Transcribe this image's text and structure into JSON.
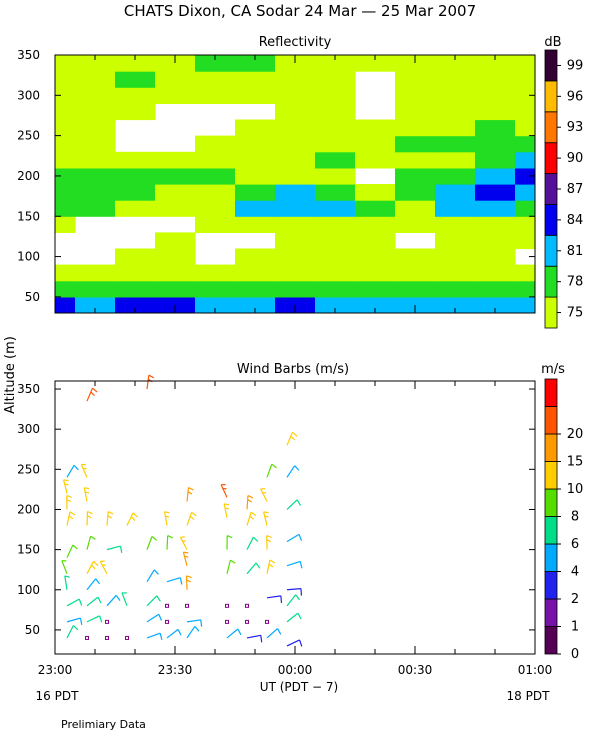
{
  "title": "CHATS Dixon, CA  Sodar  24 Mar — 25 Mar 2007",
  "y_axis_label": "Altitude (m)",
  "x_axis_label": "UT  (PDT − 7)",
  "footer_note": "Prelimiary Data",
  "date_left": "16 PDT",
  "date_right": "18 PDT",
  "x_ticks": [
    "23:00",
    "23:30",
    "00:00",
    "00:30",
    "01:00"
  ],
  "panels": {
    "reflectivity": {
      "title": "Reflectivity",
      "unit": "dB",
      "y_ticks": [
        "350",
        "300",
        "250",
        "200",
        "150",
        "100",
        "50"
      ],
      "colorbar": [
        {
          "label": "75",
          "color": "#ccff00"
        },
        {
          "label": "78",
          "color": "#22dd22"
        },
        {
          "label": "81",
          "color": "#00bbff"
        },
        {
          "label": "84",
          "color": "#0000ee"
        },
        {
          "label": "87",
          "color": "#551199"
        },
        {
          "label": "90",
          "color": "#ff0000"
        },
        {
          "label": "93",
          "color": "#ff7700"
        },
        {
          "label": "96",
          "color": "#ffbb00"
        },
        {
          "label": "99",
          "color": "#330033"
        }
      ]
    },
    "wind": {
      "title": "Wind Barbs (m/s)",
      "unit": "m/s",
      "y_ticks": [
        "350",
        "300",
        "250",
        "200",
        "150",
        "100",
        "50"
      ],
      "colorbar": [
        {
          "label": "0",
          "color": "#550055"
        },
        {
          "label": "1",
          "color": "#7711aa"
        },
        {
          "label": "2",
          "color": "#2222ee"
        },
        {
          "label": "4",
          "color": "#00aaff"
        },
        {
          "label": "6",
          "color": "#00dd88"
        },
        {
          "label": "8",
          "color": "#55dd00"
        },
        {
          "label": "10",
          "color": "#ffcc00"
        },
        {
          "label": "15",
          "color": "#ff9900"
        },
        {
          "label": "20",
          "color": "#ff5500"
        },
        {
          "label": "",
          "color": "#ff0000"
        }
      ]
    }
  },
  "chart_data": [
    {
      "type": "heatmap",
      "title": "Reflectivity",
      "units": "dB",
      "xlabel": "UT  (PDT − 7)",
      "ylabel": "Altitude (m)",
      "x_range": [
        "23:00",
        "01:00"
      ],
      "ylim": [
        30,
        350
      ],
      "levels": [
        75,
        78,
        81,
        84,
        87,
        90,
        93,
        96,
        99
      ],
      "x": [
        0,
        10,
        20,
        30,
        40,
        50,
        60,
        70,
        80,
        90,
        100,
        110,
        120
      ],
      "y": [
        40,
        60,
        80,
        100,
        120,
        140,
        160,
        180,
        200,
        220,
        240,
        260,
        280,
        300,
        320,
        340
      ],
      "z": [
        [
          84,
          81,
          84,
          84,
          81,
          81,
          84,
          81,
          81,
          81,
          81,
          81,
          81
        ],
        [
          80,
          79,
          79,
          79,
          79,
          79,
          80,
          79,
          79,
          79,
          79,
          79,
          79
        ],
        [
          77,
          76,
          76,
          76,
          76,
          76,
          77,
          77,
          77,
          77,
          77,
          77,
          76
        ],
        [
          74,
          74,
          75,
          76,
          74,
          75,
          76,
          76,
          76,
          75,
          76,
          76,
          74
        ],
        [
          74,
          72,
          74,
          75,
          72,
          74,
          75,
          76,
          75,
          74,
          75,
          75,
          76
        ],
        [
          76,
          74,
          73,
          74,
          76,
          77,
          77,
          76,
          76,
          75,
          77,
          77,
          76
        ],
        [
          78,
          78,
          77,
          76,
          77,
          81,
          82,
          82,
          79,
          77,
          82,
          82,
          79
        ],
        [
          78,
          79,
          79,
          77,
          76,
          79,
          82,
          78,
          75,
          79,
          83,
          85,
          83
        ],
        [
          79,
          79,
          79,
          78,
          78,
          77,
          77,
          76,
          73,
          78,
          79,
          83,
          85
        ],
        [
          77,
          77,
          76,
          76,
          77,
          77,
          77,
          79,
          76,
          77,
          77,
          79,
          82
        ],
        [
          76,
          75,
          74,
          74,
          75,
          75,
          76,
          77,
          77,
          78,
          78,
          78,
          78
        ],
        [
          76,
          75,
          74,
          73,
          74,
          75,
          76,
          76,
          75,
          75,
          77,
          78,
          76
        ],
        [
          76,
          76,
          76,
          74,
          73,
          74,
          76,
          75,
          74,
          75,
          76,
          76,
          76
        ],
        [
          76,
          75,
          76,
          76,
          75,
          75,
          76,
          75,
          74,
          75,
          75,
          76,
          76
        ],
        [
          76,
          76,
          78,
          76,
          76,
          76,
          77,
          76,
          74,
          75,
          76,
          76,
          75
        ],
        [
          76,
          76,
          76,
          76,
          79,
          78,
          77,
          76,
          75,
          76,
          76,
          76,
          76
        ]
      ]
    },
    {
      "type": "scatter",
      "subtype": "wind_barbs",
      "title": "Wind Barbs (m/s)",
      "units": "m/s",
      "xlabel": "UT  (PDT − 7)",
      "ylabel": "Altitude (m)",
      "x_range": [
        "23:00",
        "01:00"
      ],
      "ylim": [
        20,
        360
      ],
      "speed_levels": [
        0,
        1,
        2,
        4,
        6,
        8,
        10,
        15,
        20
      ],
      "barbs": [
        {
          "t": 3,
          "alt": 40,
          "speed": 6
        },
        {
          "t": 3,
          "alt": 60,
          "speed": 5
        },
        {
          "t": 3,
          "alt": 80,
          "speed": 6
        },
        {
          "t": 3,
          "alt": 100,
          "speed": 7
        },
        {
          "t": 3,
          "alt": 120,
          "speed": 9
        },
        {
          "t": 3,
          "alt": 140,
          "speed": 9
        },
        {
          "t": 3,
          "alt": 180,
          "speed": 10
        },
        {
          "t": 3,
          "alt": 200,
          "speed": 10
        },
        {
          "t": 3,
          "alt": 220,
          "speed": 10
        },
        {
          "t": 3,
          "alt": 240,
          "speed": 5
        },
        {
          "t": 8,
          "alt": 40,
          "speed": 0
        },
        {
          "t": 8,
          "alt": 60,
          "speed": 6
        },
        {
          "t": 8,
          "alt": 80,
          "speed": 6
        },
        {
          "t": 8,
          "alt": 100,
          "speed": 5
        },
        {
          "t": 8,
          "alt": 120,
          "speed": 10
        },
        {
          "t": 8,
          "alt": 150,
          "speed": 9
        },
        {
          "t": 8,
          "alt": 180,
          "speed": 10
        },
        {
          "t": 8,
          "alt": 210,
          "speed": 10
        },
        {
          "t": 8,
          "alt": 240,
          "speed": 10
        },
        {
          "t": 8,
          "alt": 335,
          "speed": 20
        },
        {
          "t": 13,
          "alt": 40,
          "speed": 0
        },
        {
          "t": 13,
          "alt": 60,
          "speed": 0
        },
        {
          "t": 13,
          "alt": 80,
          "speed": 5
        },
        {
          "t": 13,
          "alt": 120,
          "speed": 10
        },
        {
          "t": 13,
          "alt": 150,
          "speed": 6
        },
        {
          "t": 13,
          "alt": 180,
          "speed": 10
        },
        {
          "t": 18,
          "alt": 40,
          "speed": 0
        },
        {
          "t": 18,
          "alt": 80,
          "speed": 7
        },
        {
          "t": 18,
          "alt": 180,
          "speed": 10
        },
        {
          "t": 23,
          "alt": 40,
          "speed": 5
        },
        {
          "t": 23,
          "alt": 60,
          "speed": 5
        },
        {
          "t": 23,
          "alt": 80,
          "speed": 6
        },
        {
          "t": 23,
          "alt": 110,
          "speed": 5
        },
        {
          "t": 23,
          "alt": 150,
          "speed": 8
        },
        {
          "t": 23,
          "alt": 350,
          "speed": 20
        },
        {
          "t": 28,
          "alt": 40,
          "speed": 5
        },
        {
          "t": 28,
          "alt": 60,
          "speed": 0
        },
        {
          "t": 28,
          "alt": 80,
          "speed": 0
        },
        {
          "t": 28,
          "alt": 110,
          "speed": 5
        },
        {
          "t": 28,
          "alt": 150,
          "speed": 9
        },
        {
          "t": 28,
          "alt": 180,
          "speed": 10
        },
        {
          "t": 33,
          "alt": 40,
          "speed": 5
        },
        {
          "t": 33,
          "alt": 60,
          "speed": 5
        },
        {
          "t": 33,
          "alt": 80,
          "speed": 0
        },
        {
          "t": 33,
          "alt": 100,
          "speed": 15
        },
        {
          "t": 33,
          "alt": 130,
          "speed": 15
        },
        {
          "t": 33,
          "alt": 150,
          "speed": 10
        },
        {
          "t": 33,
          "alt": 180,
          "speed": 10
        },
        {
          "t": 33,
          "alt": 210,
          "speed": 15
        },
        {
          "t": 43,
          "alt": 40,
          "speed": 5
        },
        {
          "t": 43,
          "alt": 60,
          "speed": 0
        },
        {
          "t": 43,
          "alt": 80,
          "speed": 0
        },
        {
          "t": 43,
          "alt": 120,
          "speed": 9
        },
        {
          "t": 43,
          "alt": 150,
          "speed": 9
        },
        {
          "t": 43,
          "alt": 190,
          "speed": 10
        },
        {
          "t": 43,
          "alt": 215,
          "speed": 20
        },
        {
          "t": 48,
          "alt": 40,
          "speed": 3
        },
        {
          "t": 48,
          "alt": 60,
          "speed": 0
        },
        {
          "t": 48,
          "alt": 80,
          "speed": 0
        },
        {
          "t": 48,
          "alt": 120,
          "speed": 6
        },
        {
          "t": 48,
          "alt": 150,
          "speed": 6
        },
        {
          "t": 48,
          "alt": 180,
          "speed": 10
        },
        {
          "t": 48,
          "alt": 200,
          "speed": 15
        },
        {
          "t": 53,
          "alt": 40,
          "speed": 5
        },
        {
          "t": 53,
          "alt": 60,
          "speed": 0
        },
        {
          "t": 53,
          "alt": 90,
          "speed": 2
        },
        {
          "t": 53,
          "alt": 120,
          "speed": 10
        },
        {
          "t": 53,
          "alt": 150,
          "speed": 10
        },
        {
          "t": 53,
          "alt": 180,
          "speed": 10
        },
        {
          "t": 53,
          "alt": 210,
          "speed": 10
        },
        {
          "t": 53,
          "alt": 240,
          "speed": 9
        },
        {
          "t": 58,
          "alt": 30,
          "speed": 2
        },
        {
          "t": 58,
          "alt": 60,
          "speed": 6
        },
        {
          "t": 58,
          "alt": 80,
          "speed": 6
        },
        {
          "t": 58,
          "alt": 100,
          "speed": 2
        },
        {
          "t": 58,
          "alt": 130,
          "speed": 5
        },
        {
          "t": 58,
          "alt": 160,
          "speed": 5
        },
        {
          "t": 58,
          "alt": 200,
          "speed": 6
        },
        {
          "t": 58,
          "alt": 240,
          "speed": 5
        },
        {
          "t": 58,
          "alt": 280,
          "speed": 10
        }
      ]
    }
  ]
}
